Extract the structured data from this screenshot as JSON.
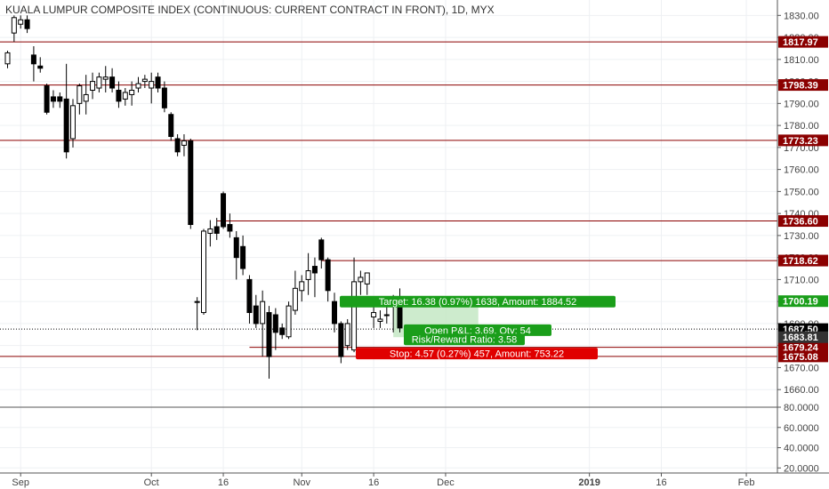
{
  "chart_data": {
    "type": "candlestick",
    "title": "KUALA LUMPUR COMPOSITE INDEX (CONTINUOUS: CURRENT CONTRACT IN FRONT), 1D, MYX",
    "y_axis": {
      "range": [
        1652,
        1837
      ],
      "ticks": [
        "1830.00",
        "1820.00",
        "1810.00",
        "1800.00",
        "1790.00",
        "1780.00",
        "1770.00",
        "1760.00",
        "1750.00",
        "1740.00",
        "1730.00",
        "1720.00",
        "1710.00",
        "1700.00",
        "1690.00",
        "1680.00",
        "1670.00",
        "1660.00"
      ]
    },
    "indicator_axis": {
      "range": [
        15,
        80
      ],
      "ticks": [
        "80.0000",
        "60.0000",
        "40.0000",
        "20.0000"
      ]
    },
    "x_axis": {
      "ticks": [
        {
          "label": "Sep",
          "bar": 2
        },
        {
          "label": "Oct",
          "bar": 22
        },
        {
          "label": "16",
          "bar": 33
        },
        {
          "label": "Nov",
          "bar": 45
        },
        {
          "label": "16",
          "bar": 56
        },
        {
          "label": "Dec",
          "bar": 67
        },
        {
          "label": "2019",
          "bar": 89
        },
        {
          "label": "16",
          "bar": 100
        },
        {
          "label": "Feb",
          "bar": 113
        }
      ]
    },
    "candles": [
      {
        "o": 1808,
        "h": 1814,
        "l": 1806,
        "c": 1813
      },
      {
        "o": 1822,
        "h": 1830,
        "l": 1818,
        "c": 1829
      },
      {
        "o": 1826,
        "h": 1830,
        "l": 1824,
        "c": 1828
      },
      {
        "o": 1828,
        "h": 1830,
        "l": 1822,
        "c": 1824
      },
      {
        "o": 1812,
        "h": 1816,
        "l": 1800,
        "c": 1808
      },
      {
        "o": 1807,
        "h": 1811,
        "l": 1804,
        "c": 1806
      },
      {
        "o": 1798,
        "h": 1799,
        "l": 1785,
        "c": 1786
      },
      {
        "o": 1793,
        "h": 1796,
        "l": 1788,
        "c": 1791
      },
      {
        "o": 1793,
        "h": 1795,
        "l": 1788,
        "c": 1791
      },
      {
        "o": 1792,
        "h": 1808,
        "l": 1765,
        "c": 1768
      },
      {
        "o": 1774,
        "h": 1792,
        "l": 1770,
        "c": 1789
      },
      {
        "o": 1790,
        "h": 1799,
        "l": 1785,
        "c": 1798
      },
      {
        "o": 1791,
        "h": 1803,
        "l": 1785,
        "c": 1794
      },
      {
        "o": 1796,
        "h": 1804,
        "l": 1792,
        "c": 1800
      },
      {
        "o": 1797,
        "h": 1804,
        "l": 1795,
        "c": 1802
      },
      {
        "o": 1801,
        "h": 1807,
        "l": 1795,
        "c": 1802
      },
      {
        "o": 1802,
        "h": 1806,
        "l": 1795,
        "c": 1797
      },
      {
        "o": 1796,
        "h": 1800,
        "l": 1788,
        "c": 1791
      },
      {
        "o": 1792,
        "h": 1797,
        "l": 1789,
        "c": 1795
      },
      {
        "o": 1794,
        "h": 1800,
        "l": 1789,
        "c": 1796
      },
      {
        "o": 1797,
        "h": 1802,
        "l": 1795,
        "c": 1799
      },
      {
        "o": 1800,
        "h": 1803,
        "l": 1797,
        "c": 1801
      },
      {
        "o": 1797,
        "h": 1804,
        "l": 1790,
        "c": 1800
      },
      {
        "o": 1802,
        "h": 1804,
        "l": 1795,
        "c": 1797
      },
      {
        "o": 1797,
        "h": 1800,
        "l": 1786,
        "c": 1788
      },
      {
        "o": 1785,
        "h": 1786,
        "l": 1773,
        "c": 1775
      },
      {
        "o": 1774,
        "h": 1776,
        "l": 1766,
        "c": 1768
      },
      {
        "o": 1771,
        "h": 1776,
        "l": 1766,
        "c": 1773
      },
      {
        "o": 1773,
        "h": 1774,
        "l": 1733,
        "c": 1735
      },
      {
        "o": 1700,
        "h": 1702,
        "l": 1687,
        "c": 1700
      },
      {
        "o": 1695,
        "h": 1733,
        "l": 1694,
        "c": 1732
      },
      {
        "o": 1731,
        "h": 1737,
        "l": 1725,
        "c": 1733
      },
      {
        "o": 1734,
        "h": 1738,
        "l": 1728,
        "c": 1731
      },
      {
        "o": 1749,
        "h": 1750,
        "l": 1733,
        "c": 1734
      },
      {
        "o": 1735,
        "h": 1740,
        "l": 1729,
        "c": 1732
      },
      {
        "o": 1729,
        "h": 1732,
        "l": 1710,
        "c": 1720
      },
      {
        "o": 1725,
        "h": 1730,
        "l": 1712,
        "c": 1715
      },
      {
        "o": 1710,
        "h": 1712,
        "l": 1690,
        "c": 1695
      },
      {
        "o": 1698,
        "h": 1703,
        "l": 1688,
        "c": 1690
      },
      {
        "o": 1690,
        "h": 1705,
        "l": 1675,
        "c": 1700
      },
      {
        "o": 1695,
        "h": 1698,
        "l": 1665,
        "c": 1675
      },
      {
        "o": 1694,
        "h": 1697,
        "l": 1678,
        "c": 1686
      },
      {
        "o": 1688,
        "h": 1690,
        "l": 1683,
        "c": 1685
      },
      {
        "o": 1684,
        "h": 1700,
        "l": 1683,
        "c": 1698
      },
      {
        "o": 1696,
        "h": 1714,
        "l": 1694,
        "c": 1706
      },
      {
        "o": 1705,
        "h": 1712,
        "l": 1700,
        "c": 1709
      },
      {
        "o": 1710,
        "h": 1722,
        "l": 1703,
        "c": 1714
      },
      {
        "o": 1716,
        "h": 1720,
        "l": 1702,
        "c": 1713
      },
      {
        "o": 1728,
        "h": 1729,
        "l": 1715,
        "c": 1719
      },
      {
        "o": 1719,
        "h": 1720,
        "l": 1700,
        "c": 1705
      },
      {
        "o": 1700,
        "h": 1704,
        "l": 1686,
        "c": 1690
      },
      {
        "o": 1690,
        "h": 1691,
        "l": 1672,
        "c": 1675
      },
      {
        "o": 1680,
        "h": 1692,
        "l": 1678,
        "c": 1690
      },
      {
        "o": 1678,
        "h": 1720,
        "l": 1677,
        "c": 1709
      },
      {
        "o": 1709,
        "h": 1714,
        "l": 1703,
        "c": 1711
      },
      {
        "o": 1708,
        "h": 1712,
        "l": 1703,
        "c": 1713
      },
      {
        "o": 1693,
        "h": 1700,
        "l": 1688,
        "c": 1695
      },
      {
        "o": 1691,
        "h": 1696,
        "l": 1688,
        "c": 1692
      },
      {
        "o": 1694,
        "h": 1700,
        "l": 1690,
        "c": 1694
      },
      {
        "o": 1700,
        "h": 1703,
        "l": 1686,
        "c": 1698
      },
      {
        "o": 1698,
        "h": 1706,
        "l": 1686,
        "c": 1688
      }
    ],
    "horizontal_levels": [
      {
        "label": "1817.97",
        "value": 1817.97,
        "style": "solid",
        "color": "#8b0000"
      },
      {
        "label": "1798.39",
        "value": 1798.39,
        "style": "solid",
        "color": "#8b0000"
      },
      {
        "label": "1773.23",
        "value": 1773.23,
        "style": "solid",
        "color": "#8b0000"
      },
      {
        "label": "1736.60",
        "value": 1736.6,
        "style": "solid",
        "color": "#8b0000"
      },
      {
        "label": "1718.62",
        "value": 1718.62,
        "style": "solid",
        "color": "#8b0000"
      },
      {
        "label": "1687.50",
        "value": 1687.5,
        "style": "dotted",
        "color": "#000000"
      },
      {
        "label": "1679.24",
        "value": 1679.24,
        "style": "solid",
        "color": "#8b0000"
      },
      {
        "label": "1675.08",
        "value": 1675.08,
        "style": "solid",
        "color": "#8b0000"
      }
    ],
    "position": {
      "entry": 1683.81,
      "target": 1700.19,
      "stop": 1679.24,
      "start_bar": 59,
      "end_bar": 72,
      "target_text": "Target: 16.38 (0.97%) 1638, Amount: 1884.52",
      "pnl_text": "Open P&L: 3.69, Qty: 54",
      "rr_text": "Risk/Reward Ratio: 3.58",
      "stop_text": "Stop: 4.57 (0.27%) 457, Amount: 753.22",
      "target_label": "1700.19",
      "entry_label": "1683.81"
    },
    "colors": {
      "up_candle": "#ffffff",
      "down_candle": "#000000",
      "level_line": "#8b0000",
      "target_zone": "#c8e9c8",
      "target_badge": "#1a9e1a",
      "stop_badge": "#e00000",
      "axis_text": "#444444"
    }
  }
}
